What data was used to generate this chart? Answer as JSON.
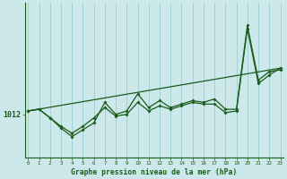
{
  "title": "Graphe pression niveau de la mer (hPa)",
  "background_color": "#cce8ea",
  "line_color": "#1a5c1a",
  "grid_color": "#9ecfd1",
  "ylabel_text": "1012",
  "base_pressure": 1012.0,
  "hours": [
    0,
    1,
    2,
    3,
    4,
    5,
    6,
    7,
    8,
    9,
    10,
    11,
    12,
    13,
    14,
    15,
    16,
    17,
    18,
    19,
    20,
    21,
    22,
    23
  ],
  "series1": [
    1012.2,
    1012.3,
    1011.8,
    1011.2,
    1010.7,
    1011.1,
    1011.5,
    1012.7,
    1012.0,
    1012.2,
    1013.2,
    1012.4,
    1012.8,
    1012.4,
    1012.6,
    1012.8,
    1012.7,
    1012.9,
    1012.3,
    1012.3,
    1017.2,
    1014.0,
    1014.5,
    1014.6
  ],
  "series2": [
    1012.2,
    1012.3,
    1011.8,
    1011.3,
    1010.9,
    1011.3,
    1011.8,
    1012.4,
    1011.9,
    1012.0,
    1012.7,
    1012.2,
    1012.5,
    1012.3,
    1012.5,
    1012.7,
    1012.6,
    1012.6,
    1012.1,
    1012.2,
    1017.0,
    1013.8,
    1014.3,
    1014.7
  ],
  "trend_x": [
    0,
    23
  ],
  "trend_y": [
    1012.2,
    1014.7
  ],
  "ylim": [
    1009.5,
    1018.5
  ],
  "xlim": [
    -0.3,
    23.3
  ]
}
